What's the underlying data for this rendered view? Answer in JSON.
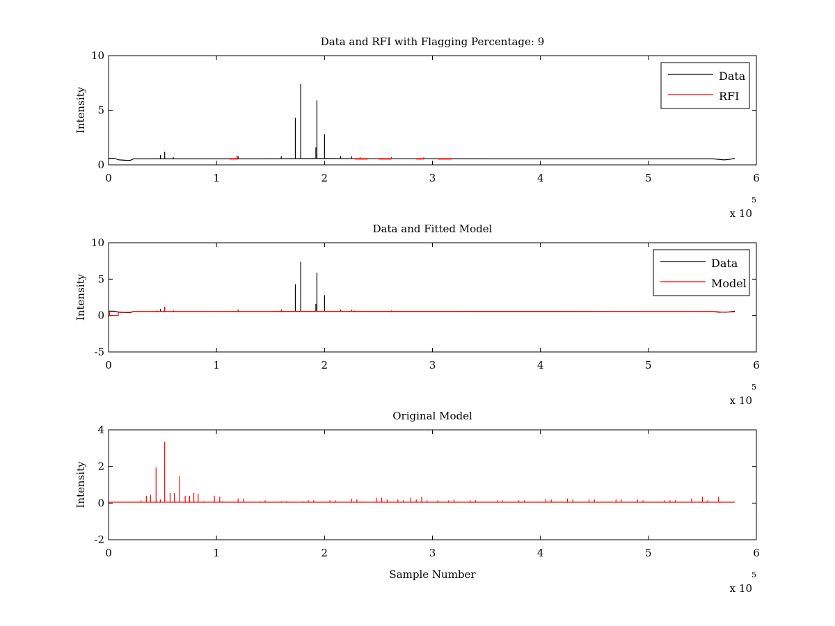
{
  "chart_data": [
    {
      "type": "line",
      "title": "Data and RFI with Flagging Percentage: 9",
      "xlabel": "",
      "ylabel": "Intensity",
      "xlim": [
        0,
        600000
      ],
      "ylim": [
        0,
        10
      ],
      "xticks": [
        0,
        100000,
        200000,
        300000,
        400000,
        500000,
        600000
      ],
      "xtick_labels": [
        "0",
        "1",
        "2",
        "3",
        "4",
        "5",
        "6"
      ],
      "yticks": [
        0,
        5,
        10
      ],
      "ytick_labels": [
        "0",
        "5",
        "10"
      ],
      "x_exponent": {
        "base": "x 10",
        "power": "5"
      },
      "grid": false,
      "legend_position": "top-right",
      "series": [
        {
          "name": "Data",
          "color": "#000000",
          "x": [
            0,
            5000,
            10000,
            15000,
            20000,
            23000,
            30000,
            60000,
            100000,
            150000,
            170000,
            200000,
            250000,
            300000,
            350000,
            400000,
            450000,
            500000,
            550000,
            560000,
            570000,
            575000,
            580000
          ],
          "y": [
            0.6,
            0.6,
            0.45,
            0.42,
            0.4,
            0.55,
            0.55,
            0.55,
            0.55,
            0.55,
            0.57,
            0.58,
            0.56,
            0.56,
            0.55,
            0.55,
            0.55,
            0.55,
            0.55,
            0.55,
            0.45,
            0.5,
            0.6
          ],
          "spikes": [
            [
              52000,
              1.2
            ],
            [
              48000,
              0.9
            ],
            [
              60000,
              0.7
            ],
            [
              120000,
              0.8
            ],
            [
              160000,
              0.8
            ],
            [
              173000,
              4.3
            ],
            [
              178000,
              7.4
            ],
            [
              192000,
              1.6
            ],
            [
              193000,
              5.9
            ],
            [
              200000,
              2.8
            ],
            [
              215000,
              0.8
            ],
            [
              225000,
              0.8
            ]
          ]
        },
        {
          "name": "RFI",
          "color": "#ff0000",
          "segments": [
            [
              112000,
              120000
            ],
            [
              228000,
              240000
            ],
            [
              250000,
              262000
            ],
            [
              285000,
              292000
            ],
            [
              305000,
              318000
            ]
          ],
          "level": 0.55,
          "spikes": [
            [
              119000,
              0.85
            ],
            [
              233000,
              0.7
            ],
            [
              262000,
              0.7
            ],
            [
              292000,
              0.7
            ]
          ]
        }
      ]
    },
    {
      "type": "line",
      "title": "Data and Fitted Model",
      "xlabel": "",
      "ylabel": "Intensity",
      "xlim": [
        0,
        600000
      ],
      "ylim": [
        -5,
        10
      ],
      "xticks": [
        0,
        100000,
        200000,
        300000,
        400000,
        500000,
        600000
      ],
      "xtick_labels": [
        "0",
        "1",
        "2",
        "3",
        "4",
        "5",
        "6"
      ],
      "yticks": [
        -5,
        0,
        5,
        10
      ],
      "ytick_labels": [
        "-5",
        "0",
        "5",
        "10"
      ],
      "x_exponent": {
        "base": "x 10",
        "power": "5"
      },
      "grid": false,
      "legend_position": "top-right",
      "series": [
        {
          "name": "Data",
          "color": "#000000",
          "x": [
            0,
            5000,
            10000,
            15000,
            20000,
            23000,
            30000,
            60000,
            100000,
            150000,
            170000,
            200000,
            250000,
            300000,
            350000,
            400000,
            450000,
            500000,
            550000,
            560000,
            570000,
            575000,
            580000
          ],
          "y": [
            0.6,
            0.6,
            0.45,
            0.42,
            0.4,
            0.55,
            0.55,
            0.55,
            0.55,
            0.55,
            0.57,
            0.58,
            0.56,
            0.56,
            0.55,
            0.55,
            0.55,
            0.55,
            0.55,
            0.55,
            0.45,
            0.5,
            0.6
          ],
          "spikes": [
            [
              52000,
              1.2
            ],
            [
              48000,
              0.9
            ],
            [
              60000,
              0.7
            ],
            [
              120000,
              0.8
            ],
            [
              160000,
              0.8
            ],
            [
              173000,
              4.3
            ],
            [
              178000,
              7.4
            ],
            [
              192000,
              1.6
            ],
            [
              193000,
              5.9
            ],
            [
              200000,
              2.8
            ],
            [
              215000,
              0.8
            ],
            [
              225000,
              0.8
            ]
          ]
        },
        {
          "name": "Model",
          "color": "#ff0000",
          "x": [
            0,
            1000,
            1000,
            9000,
            9000,
            15000,
            20000,
            23000,
            60000,
            150000,
            200000,
            300000,
            400000,
            500000,
            560000,
            565000,
            580000
          ],
          "y": [
            0.4,
            0.4,
            0.0,
            0.0,
            0.5,
            0.45,
            0.45,
            0.55,
            0.55,
            0.55,
            0.58,
            0.58,
            0.58,
            0.55,
            0.55,
            0.45,
            0.5
          ],
          "spikes": [
            [
              52000,
              1.2
            ],
            [
              45000,
              0.7
            ],
            [
              60000,
              0.7
            ],
            [
              120000,
              0.7
            ],
            [
              160000,
              0.75
            ],
            [
              228000,
              0.7
            ],
            [
              262000,
              0.7
            ]
          ]
        }
      ]
    },
    {
      "type": "line",
      "title": "Original Model",
      "xlabel": "Sample Number",
      "ylabel": "Intensity",
      "xlim": [
        0,
        600000
      ],
      "ylim": [
        -2,
        4
      ],
      "xticks": [
        0,
        100000,
        200000,
        300000,
        400000,
        500000,
        600000
      ],
      "xtick_labels": [
        "0",
        "1",
        "2",
        "3",
        "4",
        "5",
        "6"
      ],
      "yticks": [
        -2,
        0,
        2,
        4
      ],
      "ytick_labels": [
        "-2",
        "0",
        "2",
        "4"
      ],
      "x_exponent": {
        "base": "x 10",
        "power": "5"
      },
      "grid": false,
      "series": [
        {
          "name": "",
          "color": "#ff0000",
          "x": [
            0,
            580000
          ],
          "y": [
            0.05,
            0.05
          ],
          "spikes": [
            [
              30000,
              0.15
            ],
            [
              35000,
              0.4
            ],
            [
              39000,
              0.45
            ],
            [
              44000,
              1.95
            ],
            [
              48000,
              0.2
            ],
            [
              52000,
              3.35
            ],
            [
              57000,
              0.55
            ],
            [
              61000,
              0.55
            ],
            [
              66000,
              1.5
            ],
            [
              71000,
              0.4
            ],
            [
              75000,
              0.4
            ],
            [
              79000,
              0.55
            ],
            [
              83000,
              0.5
            ],
            [
              88000,
              0.1
            ],
            [
              98000,
              0.4
            ],
            [
              103000,
              0.35
            ],
            [
              106000,
              0.1
            ],
            [
              120000,
              0.25
            ],
            [
              125000,
              0.25
            ],
            [
              140000,
              0.1
            ],
            [
              145000,
              0.15
            ],
            [
              160000,
              0.1
            ],
            [
              165000,
              0.1
            ],
            [
              180000,
              0.1
            ],
            [
              185000,
              0.15
            ],
            [
              190000,
              0.15
            ],
            [
              205000,
              0.15
            ],
            [
              210000,
              0.15
            ],
            [
              225000,
              0.25
            ],
            [
              230000,
              0.2
            ],
            [
              248000,
              0.3
            ],
            [
              253000,
              0.3
            ],
            [
              258000,
              0.2
            ],
            [
              268000,
              0.2
            ],
            [
              273000,
              0.15
            ],
            [
              280000,
              0.3
            ],
            [
              285000,
              0.2
            ],
            [
              290000,
              0.35
            ],
            [
              295000,
              0.15
            ],
            [
              305000,
              0.15
            ],
            [
              315000,
              0.15
            ],
            [
              320000,
              0.2
            ],
            [
              335000,
              0.15
            ],
            [
              340000,
              0.15
            ],
            [
              360000,
              0.15
            ],
            [
              365000,
              0.15
            ],
            [
              380000,
              0.15
            ],
            [
              385000,
              0.15
            ],
            [
              405000,
              0.2
            ],
            [
              410000,
              0.2
            ],
            [
              425000,
              0.25
            ],
            [
              430000,
              0.2
            ],
            [
              445000,
              0.2
            ],
            [
              450000,
              0.2
            ],
            [
              470000,
              0.2
            ],
            [
              475000,
              0.2
            ],
            [
              490000,
              0.2
            ],
            [
              495000,
              0.15
            ],
            [
              515000,
              0.15
            ],
            [
              520000,
              0.15
            ],
            [
              525000,
              0.15
            ],
            [
              540000,
              0.25
            ],
            [
              550000,
              0.35
            ],
            [
              555000,
              0.15
            ],
            [
              565000,
              0.35
            ]
          ]
        }
      ]
    }
  ]
}
